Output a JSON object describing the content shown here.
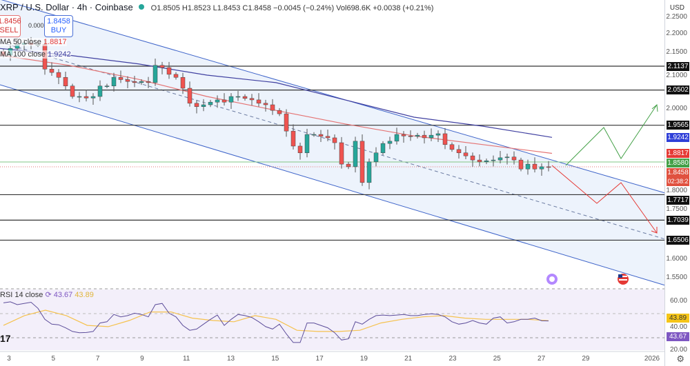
{
  "header": {
    "symbol": "XRP / U.S. Dollar · 4h · Coinbase",
    "ohlc": "O1.8505 H1.8523 L1.8453 C1.8458 −0.0045 (−0.24%) Vol698.6K +0.0038 (+0.21%)"
  },
  "trade": {
    "sell_price": "1.8456",
    "sell_label": "SELL",
    "spread": "0.0002",
    "buy_price": "1.8458",
    "buy_label": "BUY"
  },
  "indicators": {
    "ma50_label": "MA 50 close",
    "ma50_value": "1.8817",
    "ma100_label": "MA 100 close",
    "ma100_value": "1.9242",
    "rsi_label": "RSI 14 close",
    "rsi_value": "43.67",
    "rsi_ma_value": "43.89"
  },
  "axis": {
    "currency": "USD",
    "settings_icon": "gear-icon"
  },
  "colors": {
    "up": "#26a69a",
    "down": "#ef5350",
    "ma50": "#e57373",
    "ma100": "#3f3fa0",
    "rsi": "#7e57c2",
    "rsi_ma": "#f5c24e"
  },
  "chart_data": {
    "type": "candlestick",
    "interval": "4h",
    "x_tick_labels": [
      "3",
      "5",
      "7",
      "9",
      "11",
      "13",
      "15",
      "17",
      "19",
      "21",
      "23",
      "25",
      "27",
      "29",
      "2026"
    ],
    "y_tick_labels": [
      "2.2500",
      "2.2000",
      "2.1500",
      "2.1000",
      "2.0000",
      "1.8000",
      "1.7500",
      "1.6000",
      "1.5500"
    ],
    "ylim": [
      1.5,
      2.25
    ],
    "closes": [
      2.143,
      2.161,
      2.171,
      2.176,
      2.171,
      2.171,
      2.106,
      2.097,
      2.084,
      2.061,
      2.033,
      2.033,
      2.029,
      2.033,
      2.061,
      2.061,
      2.084,
      2.078,
      2.073,
      2.07,
      2.073,
      2.07,
      2.116,
      2.11,
      2.092,
      2.084,
      2.055,
      2.015,
      2.006,
      2.011,
      2.018,
      2.024,
      2.018,
      2.033,
      2.033,
      2.028,
      2.024,
      2.015,
      2.011,
      1.996,
      1.987,
      1.941,
      1.901,
      1.883,
      1.932,
      1.932,
      1.927,
      1.923,
      1.91,
      1.853,
      1.846,
      1.914,
      1.804,
      1.859,
      1.883,
      1.908,
      1.914,
      1.932,
      1.928,
      1.927,
      1.93,
      1.923,
      1.93,
      1.934,
      1.905,
      1.892,
      1.883,
      1.875,
      1.864,
      1.859,
      1.862,
      1.864,
      1.87,
      1.872,
      1.864,
      1.84,
      1.853,
      1.84,
      1.846,
      1.8458
    ],
    "ma50": [
      2.143,
      2.116,
      2.079,
      2.033,
      1.996,
      1.96,
      1.928,
      1.905,
      1.8817
    ],
    "ma100": [
      2.161,
      2.143,
      2.12,
      2.09,
      2.07,
      2.024,
      1.978,
      1.954,
      1.9242
    ],
    "levels": [
      {
        "value": "2.1137",
        "color": "#000000"
      },
      {
        "value": "2.0502",
        "color": "#000000"
      },
      {
        "value": "1.9565",
        "color": "#000000"
      },
      {
        "value": "1.7717",
        "color": "#000000"
      },
      {
        "value": "1.7039",
        "color": "#000000"
      },
      {
        "value": "1.6506",
        "color": "#000000"
      }
    ],
    "price_tags": [
      {
        "value": "1.9242",
        "color": "#2f3fd8"
      },
      {
        "value": "1.8817",
        "color": "#e53935"
      },
      {
        "value": "1.8580",
        "color": "#43a047"
      },
      {
        "value": "1.8458",
        "color": "#e0513f",
        "sub": "02:38:2"
      }
    ],
    "rsi": {
      "ylim": [
        0,
        100
      ],
      "y_tick_labels": [
        "60.00",
        "40.00",
        "20.00"
      ],
      "bands": [
        70,
        50,
        30
      ],
      "values": [
        58.5,
        59.3,
        57,
        58,
        59,
        54,
        45,
        41,
        40.5,
        38,
        35,
        34,
        34.2,
        35,
        42,
        43,
        49,
        47,
        48,
        50,
        49,
        47,
        57,
        58,
        50,
        47,
        40,
        36,
        37,
        41,
        45,
        48.5,
        40,
        45,
        49,
        48,
        46.5,
        43,
        39,
        37,
        41,
        33,
        26,
        26,
        42,
        42,
        40,
        38,
        34,
        28,
        29,
        43,
        41,
        45,
        48,
        48.5,
        48,
        48.5,
        49,
        48,
        48,
        49,
        49.5,
        49,
        47,
        43,
        41,
        42,
        44,
        42,
        41,
        46,
        47,
        42,
        43,
        45,
        45,
        46,
        43.8,
        43.67
      ],
      "ma": [
        40,
        48,
        52.5,
        48,
        40,
        39,
        44,
        51,
        51,
        46,
        44,
        43,
        48,
        45,
        36,
        35,
        35,
        36,
        42,
        45,
        47,
        48,
        46,
        45,
        45,
        45,
        43.89
      ]
    }
  }
}
